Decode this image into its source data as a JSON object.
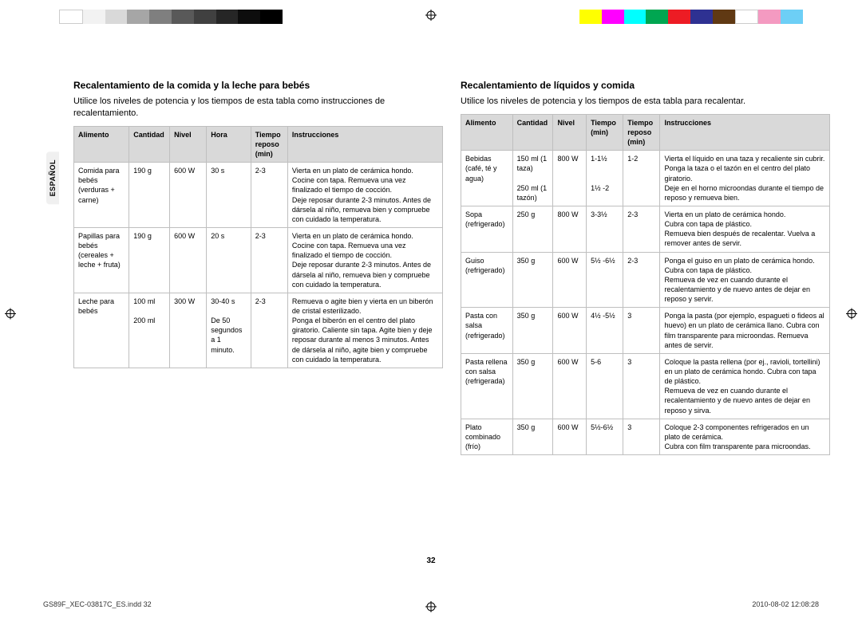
{
  "colorbars": {
    "left": [
      "#ffffff",
      "#f2f2f2",
      "#d9d9d9",
      "#a6a6a6",
      "#7f7f7f",
      "#595959",
      "#404040",
      "#262626",
      "#0d0d0d",
      "#000000"
    ],
    "right": [
      "#ffff00",
      "#ff00ff",
      "#00ffff",
      "#00a651",
      "#ed1c24",
      "#2e3192",
      "#603913",
      "#ffffff",
      "#f49ac1",
      "#6dcff6"
    ]
  },
  "sidetab": "ESPAÑOL",
  "page_number": "32",
  "footer": {
    "file": "GS89F_XEC-03817C_ES.indd   32",
    "stamp": "2010-08-02   12:08:28"
  },
  "left": {
    "heading": "Recalentamiento de la comida y la leche para bebés",
    "intro": "Utilice los niveles de potencia y los tiempos de esta tabla como instrucciones de recalentamiento.",
    "headers": [
      "Alimento",
      "Cantidad",
      "Nivel",
      "Hora",
      "Tiempo reposo (min)",
      "Instrucciones"
    ],
    "rows": [
      {
        "c0": "Comida para bebés (verduras + carne)",
        "c1": "190 g",
        "c2": "600 W",
        "c3": "30 s",
        "c4": "2-3",
        "c5": "Vierta en un plato de cerámica hondo.\nCocine con tapa. Remueva una vez finalizado el tiempo de cocción.\nDeje reposar durante 2-3 minutos. Antes de dársela al niño, remueva bien y compruebe con cuidado la temperatura."
      },
      {
        "c0": "Papillas para bebés (cereales + leche + fruta)",
        "c1": "190 g",
        "c2": "600 W",
        "c3": "20 s",
        "c4": "2-3",
        "c5": "Vierta en un plato de cerámica hondo.\nCocine con tapa. Remueva una vez finalizado el tiempo de cocción.\nDeje reposar durante 2-3 minutos. Antes de dársela al niño, remueva bien y compruebe con cuidado la temperatura."
      },
      {
        "c0": "Leche para bebés",
        "c1": "100 ml\n\n200 ml",
        "c2": "300 W",
        "c3": "30-40 s\n\nDe 50 segundos a 1 minuto.",
        "c4": "2-3",
        "c5": "Remueva o agite bien y vierta en un biberón de cristal esterilizado.\nPonga el biberón en el centro del plato giratorio. Caliente sin tapa. Agite bien y deje reposar durante al menos 3 minutos. Antes de dársela al niño, agite bien y compruebe con cuidado la temperatura."
      }
    ]
  },
  "right": {
    "heading": "Recalentamiento de líquidos y comida",
    "intro": "Utilice los niveles de potencia y los tiempos de esta tabla para recalentar.",
    "headers": [
      "Alimento",
      "Cantidad",
      "Nivel",
      "Tiempo (min)",
      "Tiempo reposo (min)",
      "Instrucciones"
    ],
    "rows": [
      {
        "c0": "Bebidas (café, té y agua)",
        "c1": "150 ml (1 taza)\n\n250 ml (1 tazón)",
        "c2": "800 W",
        "c3": "1-1½\n\n\n1½ -2",
        "c4": "1-2",
        "c5": "Vierta el líquido en una taza y recaliente sin cubrir.\nPonga la taza o el tazón en el centro del plato giratorio.\nDeje en el horno microondas durante el tiempo de reposo y remueva bien."
      },
      {
        "c0": "Sopa (refrigerado)",
        "c1": "250 g",
        "c2": "800 W",
        "c3": "3-3½",
        "c4": "2-3",
        "c5": "Vierta en un plato de cerámica hondo.\nCubra con tapa de plástico.\nRemueva bien después de recalentar. Vuelva a remover antes de servir."
      },
      {
        "c0": "Guiso (refrigerado)",
        "c1": "350 g",
        "c2": "600 W",
        "c3": "5½ -6½",
        "c4": "2-3",
        "c5": "Ponga el guiso en un plato de cerámica hondo.\nCubra con tapa de plástico.\nRemueva de vez en cuando durante el recalentamiento y de nuevo antes de dejar en reposo y servir."
      },
      {
        "c0": "Pasta con salsa (refrigerado)",
        "c1": "350 g",
        "c2": "600 W",
        "c3": "4½ -5½",
        "c4": "3",
        "c5": "Ponga la pasta (por ejemplo, espagueti o fideos al huevo) en un plato de cerámica llano. Cubra con film transparente para microondas. Remueva antes de servir."
      },
      {
        "c0": "Pasta rellena con salsa (refrigerada)",
        "c1": "350 g",
        "c2": "600 W",
        "c3": "5-6",
        "c4": "3",
        "c5": "Coloque la pasta rellena (por ej., ravioli, tortellini) en un plato de cerámica hondo. Cubra con tapa de plástico.\nRemueva de vez en cuando durante el recalentamiento y de nuevo antes de dejar en reposo y sirva."
      },
      {
        "c0": "Plato combinado (frío)",
        "c1": "350 g",
        "c2": "600 W",
        "c3": "5½-6½",
        "c4": "3",
        "c5": "Coloque 2-3 componentes refrigerados en un plato de cerámica.\nCubra con film transparente para microondas."
      }
    ]
  }
}
